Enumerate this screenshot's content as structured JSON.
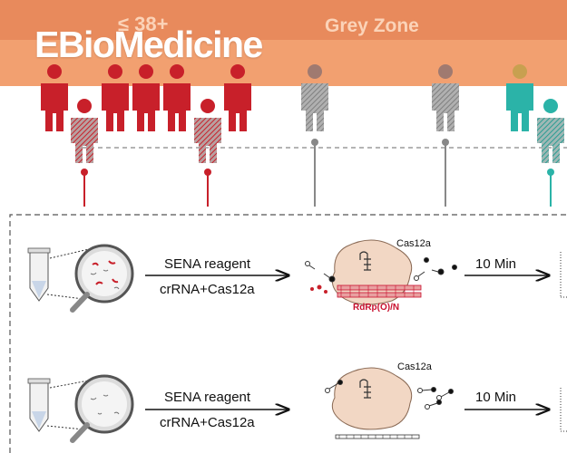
{
  "header": {
    "band_label_left": "≤ 38+",
    "band_label_right": "Grey Zone",
    "journal_logo": "EBioMedicine",
    "band_color": "#f2a070"
  },
  "people": {
    "red_color": "#c8202a",
    "grey_color": "#8c8c8c",
    "teal_color": "#2bb3a8"
  },
  "assay": {
    "row1": {
      "reagent_label": "SENA reagent",
      "mix_label": "crRNA+Cas12a",
      "enzyme_label": "Cas12a",
      "target_label": "RdRp(O)/N",
      "time_label": "10 Min"
    },
    "row2": {
      "reagent_label": "SENA reagent",
      "mix_label": "crRNA+Cas12a",
      "enzyme_label": "Cas12a",
      "time_label": "10 Min"
    }
  }
}
